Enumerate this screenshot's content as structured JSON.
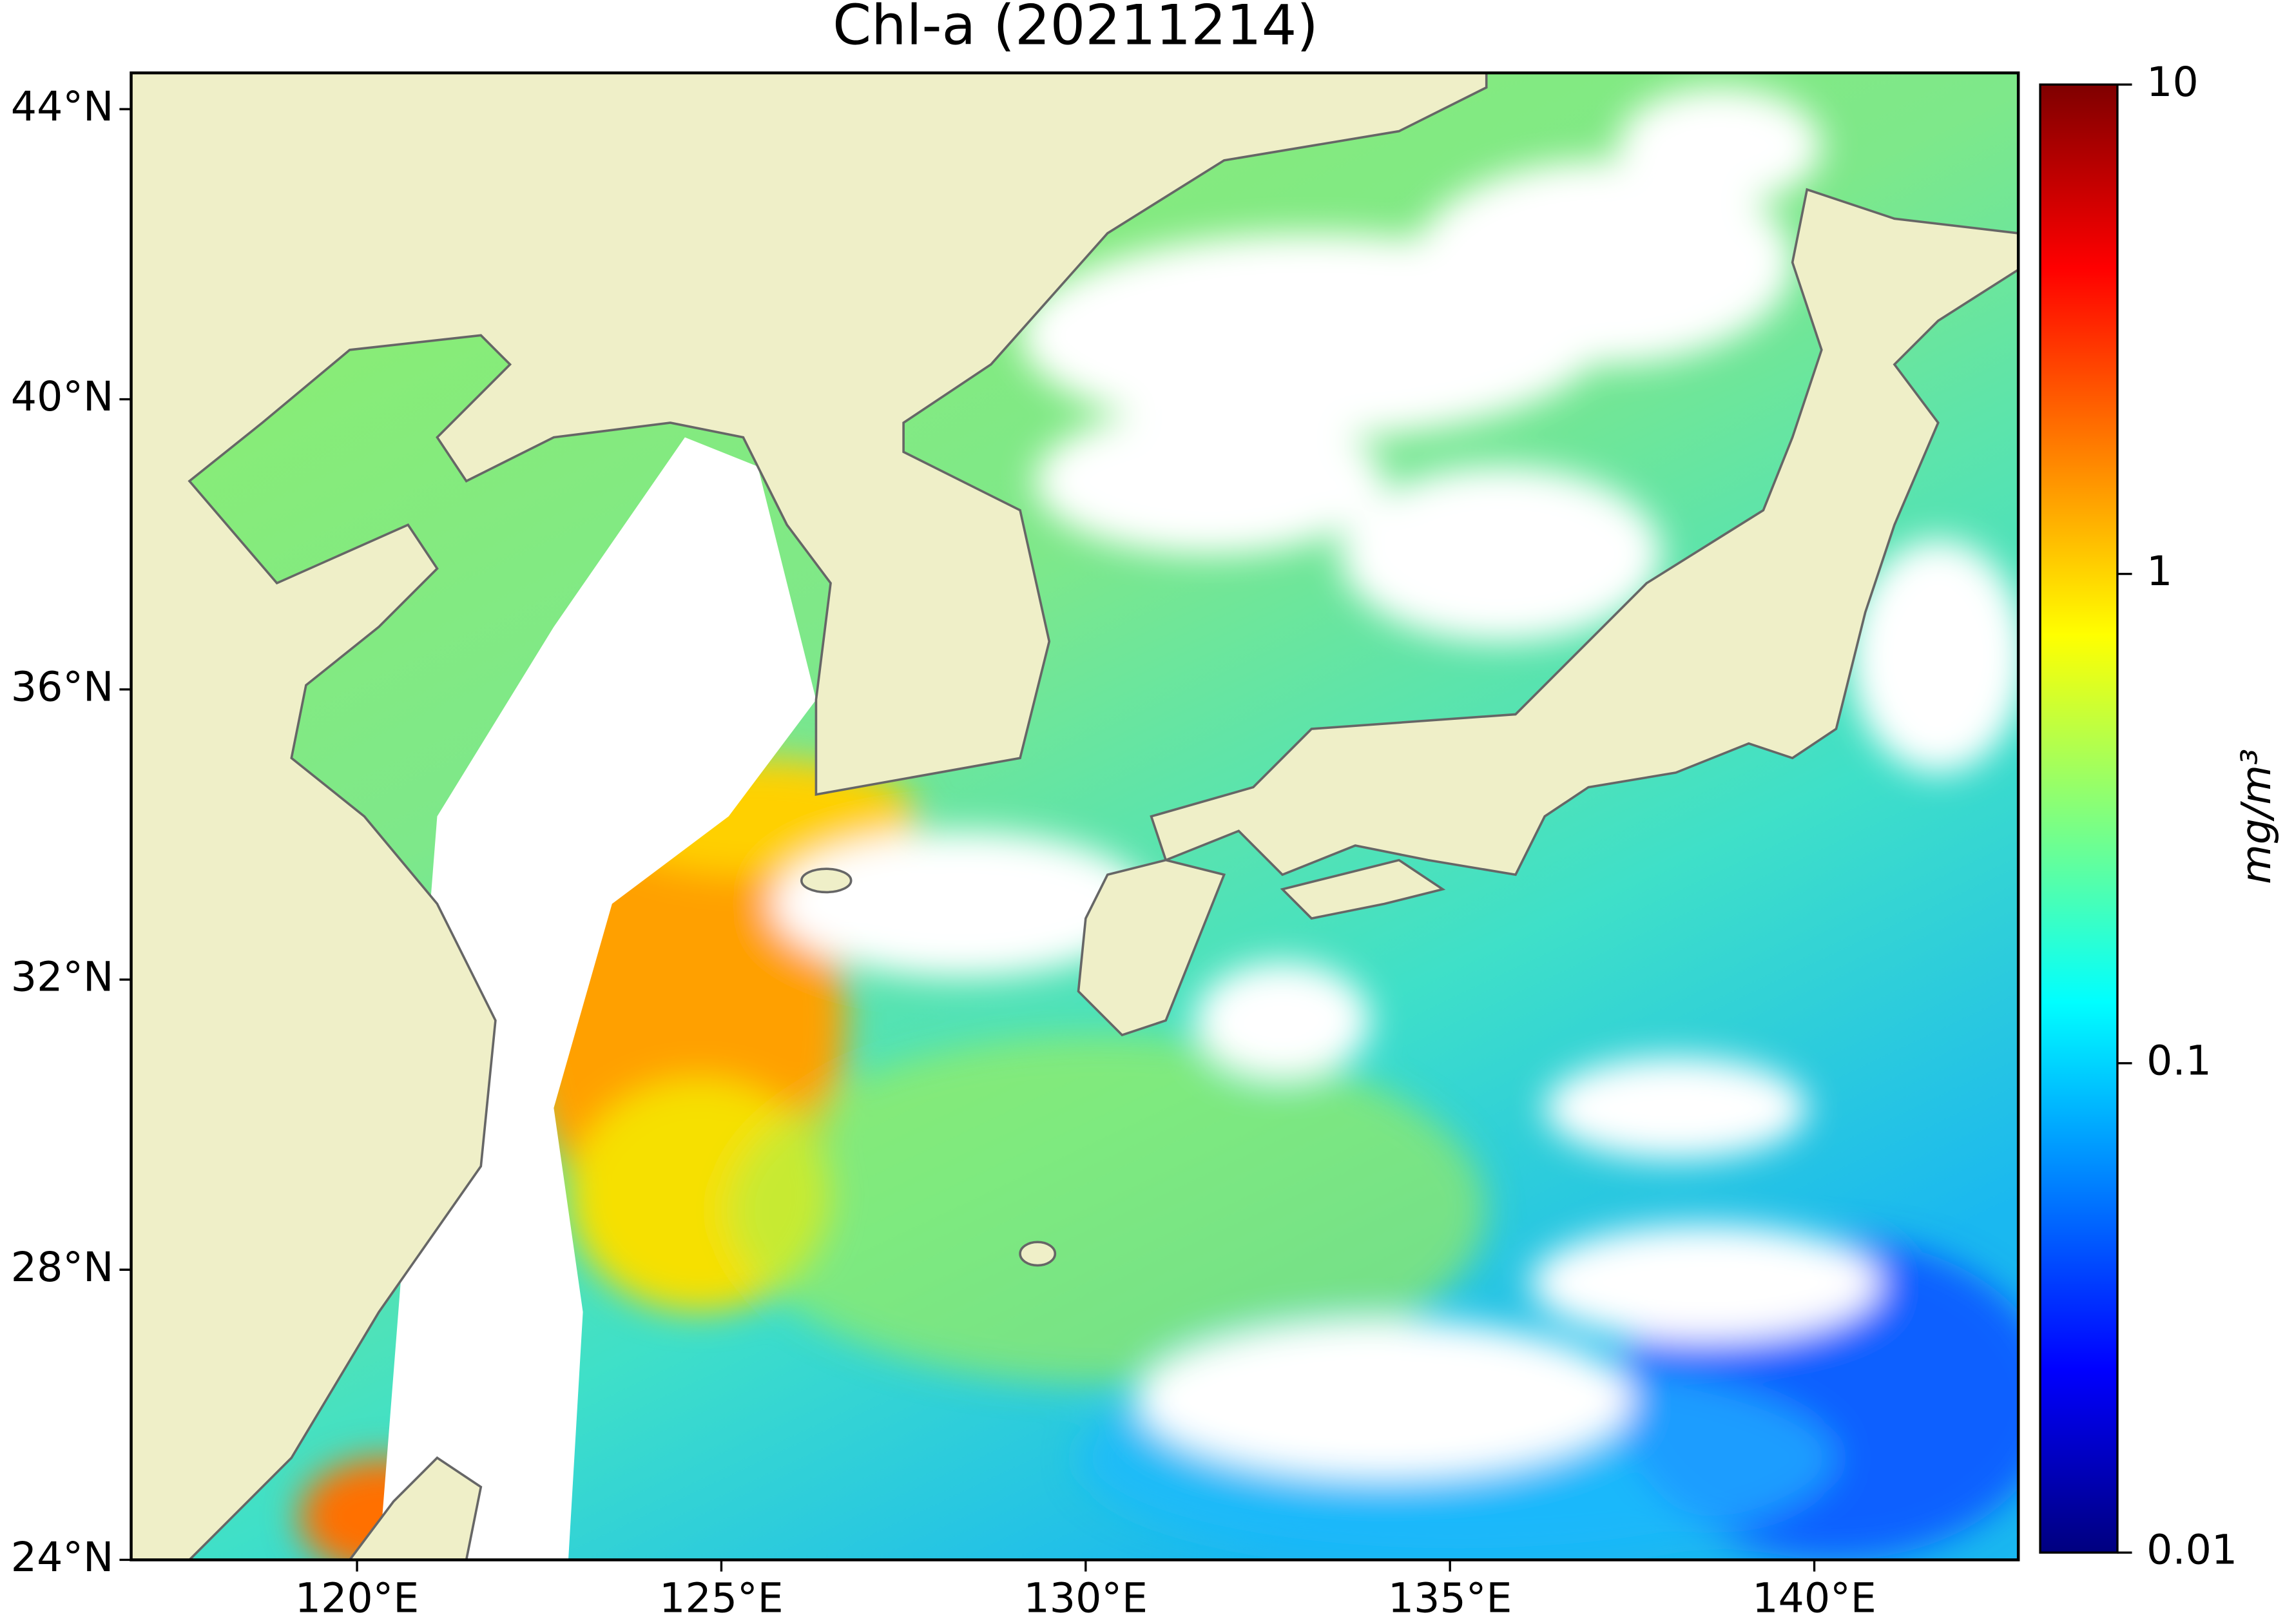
{
  "map": {
    "title": "Chl-a (20211214)",
    "xlim": [
      116.9,
      142.8
    ],
    "ylim": [
      24,
      44.5
    ],
    "xticks": [
      {
        "value": 120,
        "label": "120°E"
      },
      {
        "value": 125,
        "label": "125°E"
      },
      {
        "value": 130,
        "label": "130°E"
      },
      {
        "value": 135,
        "label": "135°E"
      },
      {
        "value": 140,
        "label": "140°E"
      }
    ],
    "yticks": [
      {
        "value": 24,
        "label": "24°N"
      },
      {
        "value": 28,
        "label": "28°N"
      },
      {
        "value": 32,
        "label": "32°N"
      },
      {
        "value": 36,
        "label": "36°N"
      },
      {
        "value": 40,
        "label": "40°N"
      },
      {
        "value": 44,
        "label": "44°N"
      }
    ],
    "colorbar": {
      "label": "mg/m³",
      "scale": "log",
      "colormap": "jet",
      "lim": [
        0.01,
        10
      ],
      "ticks": [
        0.01,
        0.1,
        1,
        10
      ]
    }
  }
}
